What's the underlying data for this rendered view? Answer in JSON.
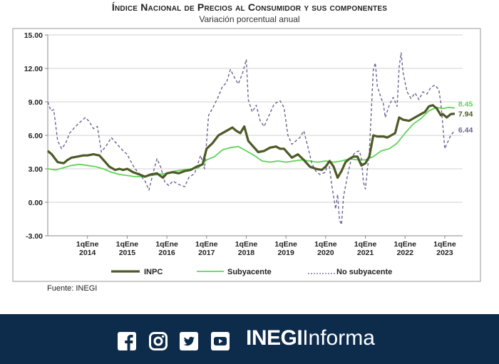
{
  "header": {
    "title": "Índice Nacional de Precios al Consumidor y sus componentes",
    "subtitle": "Variación porcentual anual"
  },
  "source": "Fuente: INEGI",
  "footer": {
    "brand_bold": "INEGI",
    "brand_light": "Informa",
    "icons": [
      "facebook-icon",
      "instagram-icon",
      "twitter-icon",
      "youtube-icon"
    ]
  },
  "chart_data": {
    "type": "line",
    "title": "Índice Nacional de Precios al Consumidor y sus componentes",
    "subtitle": "Variación porcentual anual",
    "ylim": [
      -3,
      15
    ],
    "yticks": [
      "-3.00",
      "0.00",
      "3.00",
      "6.00",
      "9.00",
      "12.00",
      "15.00"
    ],
    "xlim": [
      2013,
      2023.45
    ],
    "xticks": [
      {
        "x": 2014,
        "line1": "1qEne",
        "line2": "2014"
      },
      {
        "x": 2015,
        "line1": "1qEne",
        "line2": "2015"
      },
      {
        "x": 2016,
        "line1": "1qEne",
        "line2": "2016"
      },
      {
        "x": 2017,
        "line1": "1qEne",
        "line2": "2017"
      },
      {
        "x": 2018,
        "line1": "1qEne",
        "line2": "2018"
      },
      {
        "x": 2019,
        "line1": "1qEne",
        "line2": "2019"
      },
      {
        "x": 2020,
        "line1": "1qEne",
        "line2": "2020"
      },
      {
        "x": 2021,
        "line1": "1qEne",
        "line2": "2021"
      },
      {
        "x": 2022,
        "line1": "1qEne",
        "line2": "2022"
      },
      {
        "x": 2023,
        "line1": "1qEne",
        "line2": "2023"
      }
    ],
    "grid": true,
    "legend": "bottom",
    "series": [
      {
        "name": "INPC",
        "color": "#4d5a26",
        "style": "solid",
        "end_label": "7.94",
        "points": [
          [
            2013,
            4.6
          ],
          [
            2013.1,
            4.3
          ],
          [
            2013.25,
            3.6
          ],
          [
            2013.4,
            3.5
          ],
          [
            2013.5,
            3.8
          ],
          [
            2013.6,
            4.0
          ],
          [
            2013.75,
            4.1
          ],
          [
            2013.9,
            4.2
          ],
          [
            2014,
            4.2
          ],
          [
            2014.15,
            4.3
          ],
          [
            2014.3,
            4.2
          ],
          [
            2014.45,
            3.6
          ],
          [
            2014.55,
            3.2
          ],
          [
            2014.7,
            2.9
          ],
          [
            2014.8,
            3.0
          ],
          [
            2014.9,
            2.9
          ],
          [
            2015,
            3.0
          ],
          [
            2015.15,
            2.7
          ],
          [
            2015.3,
            2.5
          ],
          [
            2015.45,
            2.3
          ],
          [
            2015.6,
            2.5
          ],
          [
            2015.75,
            2.6
          ],
          [
            2015.9,
            2.2
          ],
          [
            2016,
            2.6
          ],
          [
            2016.15,
            2.7
          ],
          [
            2016.3,
            2.6
          ],
          [
            2016.45,
            2.8
          ],
          [
            2016.6,
            2.9
          ],
          [
            2016.75,
            3.2
          ],
          [
            2016.9,
            3.4
          ],
          [
            2017,
            4.8
          ],
          [
            2017.15,
            5.3
          ],
          [
            2017.3,
            6.0
          ],
          [
            2017.45,
            6.3
          ],
          [
            2017.55,
            6.5
          ],
          [
            2017.65,
            6.7
          ],
          [
            2017.75,
            6.4
          ],
          [
            2017.85,
            6.2
          ],
          [
            2017.95,
            6.8
          ],
          [
            2018.05,
            5.5
          ],
          [
            2018.15,
            5.1
          ],
          [
            2018.3,
            4.5
          ],
          [
            2018.45,
            4.6
          ],
          [
            2018.6,
            4.9
          ],
          [
            2018.75,
            5.0
          ],
          [
            2018.85,
            4.8
          ],
          [
            2018.95,
            4.8
          ],
          [
            2019.05,
            4.4
          ],
          [
            2019.15,
            4.0
          ],
          [
            2019.3,
            4.3
          ],
          [
            2019.45,
            3.8
          ],
          [
            2019.6,
            3.2
          ],
          [
            2019.75,
            3.0
          ],
          [
            2019.9,
            2.9
          ],
          [
            2020,
            3.2
          ],
          [
            2020.1,
            3.7
          ],
          [
            2020.2,
            3.2
          ],
          [
            2020.3,
            2.2
          ],
          [
            2020.4,
            2.8
          ],
          [
            2020.5,
            3.6
          ],
          [
            2020.6,
            3.9
          ],
          [
            2020.7,
            4.1
          ],
          [
            2020.8,
            4.1
          ],
          [
            2020.9,
            3.3
          ],
          [
            2021,
            3.5
          ],
          [
            2021.1,
            4.1
          ],
          [
            2021.2,
            6.0
          ],
          [
            2021.3,
            5.9
          ],
          [
            2021.45,
            5.9
          ],
          [
            2021.55,
            5.8
          ],
          [
            2021.65,
            6.0
          ],
          [
            2021.75,
            6.2
          ],
          [
            2021.85,
            7.6
          ],
          [
            2021.95,
            7.4
          ],
          [
            2022.1,
            7.3
          ],
          [
            2022.25,
            7.6
          ],
          [
            2022.4,
            7.9
          ],
          [
            2022.5,
            8.1
          ],
          [
            2022.6,
            8.6
          ],
          [
            2022.7,
            8.7
          ],
          [
            2022.8,
            8.4
          ],
          [
            2022.9,
            7.8
          ],
          [
            2022.95,
            7.9
          ],
          [
            2023.05,
            7.6
          ],
          [
            2023.15,
            7.9
          ],
          [
            2023.25,
            7.94
          ]
        ]
      },
      {
        "name": "Subyacente",
        "color": "#5fd35a",
        "style": "solid",
        "end_label": "8.45",
        "points": [
          [
            2013,
            3.0
          ],
          [
            2013.2,
            2.9
          ],
          [
            2013.4,
            3.1
          ],
          [
            2013.6,
            3.3
          ],
          [
            2013.8,
            3.4
          ],
          [
            2014,
            3.3
          ],
          [
            2014.2,
            3.2
          ],
          [
            2014.4,
            3.0
          ],
          [
            2014.6,
            2.7
          ],
          [
            2014.8,
            2.5
          ],
          [
            2015,
            2.4
          ],
          [
            2015.2,
            2.3
          ],
          [
            2015.4,
            2.3
          ],
          [
            2015.6,
            2.4
          ],
          [
            2015.8,
            2.5
          ],
          [
            2016,
            2.6
          ],
          [
            2016.2,
            2.8
          ],
          [
            2016.4,
            2.9
          ],
          [
            2016.6,
            3.0
          ],
          [
            2016.8,
            3.1
          ],
          [
            2017,
            3.8
          ],
          [
            2017.2,
            4.1
          ],
          [
            2017.4,
            4.7
          ],
          [
            2017.6,
            4.9
          ],
          [
            2017.8,
            5.0
          ],
          [
            2018,
            4.6
          ],
          [
            2018.2,
            4.2
          ],
          [
            2018.4,
            3.7
          ],
          [
            2018.6,
            3.6
          ],
          [
            2018.8,
            3.7
          ],
          [
            2019,
            3.6
          ],
          [
            2019.2,
            3.7
          ],
          [
            2019.4,
            3.8
          ],
          [
            2019.6,
            3.7
          ],
          [
            2019.8,
            3.6
          ],
          [
            2020,
            3.7
          ],
          [
            2020.2,
            3.6
          ],
          [
            2020.4,
            3.7
          ],
          [
            2020.6,
            3.9
          ],
          [
            2020.8,
            3.8
          ],
          [
            2021,
            3.8
          ],
          [
            2021.2,
            4.1
          ],
          [
            2021.4,
            4.6
          ],
          [
            2021.6,
            4.8
          ],
          [
            2021.8,
            5.3
          ],
          [
            2022,
            6.2
          ],
          [
            2022.2,
            7.0
          ],
          [
            2022.4,
            7.5
          ],
          [
            2022.6,
            8.2
          ],
          [
            2022.8,
            8.5
          ],
          [
            2022.95,
            8.4
          ],
          [
            2023.1,
            8.5
          ],
          [
            2023.25,
            8.45
          ]
        ]
      },
      {
        "name": "No subyacente",
        "color": "#6b6391",
        "style": "dashed",
        "end_label": "6.44",
        "points": [
          [
            2013,
            9.0
          ],
          [
            2013.08,
            8.2
          ],
          [
            2013.15,
            8.3
          ],
          [
            2013.25,
            5.5
          ],
          [
            2013.35,
            4.8
          ],
          [
            2013.45,
            5.3
          ],
          [
            2013.55,
            6.2
          ],
          [
            2013.7,
            6.8
          ],
          [
            2013.85,
            7.3
          ],
          [
            2013.95,
            7.6
          ],
          [
            2014.05,
            7.2
          ],
          [
            2014.15,
            6.6
          ],
          [
            2014.25,
            6.8
          ],
          [
            2014.35,
            4.5
          ],
          [
            2014.5,
            5.2
          ],
          [
            2014.6,
            5.8
          ],
          [
            2014.7,
            5.4
          ],
          [
            2014.8,
            5.0
          ],
          [
            2014.9,
            4.6
          ],
          [
            2015,
            4.3
          ],
          [
            2015.1,
            3.6
          ],
          [
            2015.2,
            3.0
          ],
          [
            2015.3,
            2.6
          ],
          [
            2015.45,
            1.9
          ],
          [
            2015.55,
            1.1
          ],
          [
            2015.65,
            2.6
          ],
          [
            2015.75,
            3.9
          ],
          [
            2015.85,
            3.1
          ],
          [
            2015.95,
            1.8
          ],
          [
            2016.05,
            1.5
          ],
          [
            2016.15,
            1.9
          ],
          [
            2016.3,
            1.6
          ],
          [
            2016.45,
            1.4
          ],
          [
            2016.55,
            2.2
          ],
          [
            2016.7,
            2.6
          ],
          [
            2016.85,
            4.2
          ],
          [
            2016.95,
            3.0
          ],
          [
            2017.05,
            7.8
          ],
          [
            2017.15,
            8.4
          ],
          [
            2017.3,
            9.5
          ],
          [
            2017.4,
            10.4
          ],
          [
            2017.5,
            10.7
          ],
          [
            2017.6,
            11.9
          ],
          [
            2017.7,
            11.2
          ],
          [
            2017.8,
            10.6
          ],
          [
            2017.9,
            11.5
          ],
          [
            2018,
            12.8
          ],
          [
            2018.05,
            9.2
          ],
          [
            2018.15,
            8.1
          ],
          [
            2018.25,
            8.7
          ],
          [
            2018.35,
            7.3
          ],
          [
            2018.45,
            6.8
          ],
          [
            2018.55,
            7.6
          ],
          [
            2018.7,
            8.8
          ],
          [
            2018.85,
            9.1
          ],
          [
            2018.95,
            8.5
          ],
          [
            2019.05,
            6.0
          ],
          [
            2019.15,
            5.2
          ],
          [
            2019.25,
            5.5
          ],
          [
            2019.35,
            5.8
          ],
          [
            2019.45,
            6.4
          ],
          [
            2019.55,
            5.0
          ],
          [
            2019.65,
            3.5
          ],
          [
            2019.75,
            2.8
          ],
          [
            2019.85,
            2.5
          ],
          [
            2020,
            2.7
          ],
          [
            2020.05,
            3.7
          ],
          [
            2020.1,
            3.1
          ],
          [
            2020.15,
            1.6
          ],
          [
            2020.2,
            0.5
          ],
          [
            2020.25,
            -0.6
          ],
          [
            2020.3,
            0.7
          ],
          [
            2020.35,
            -1.6
          ],
          [
            2020.4,
            -2.0
          ],
          [
            2020.45,
            0.5
          ],
          [
            2020.55,
            2.4
          ],
          [
            2020.65,
            4.0
          ],
          [
            2020.75,
            4.5
          ],
          [
            2020.85,
            4.6
          ],
          [
            2020.9,
            3.9
          ],
          [
            2020.95,
            1.8
          ],
          [
            2021,
            1.2
          ],
          [
            2021.05,
            2.9
          ],
          [
            2021.1,
            4.5
          ],
          [
            2021.15,
            8.2
          ],
          [
            2021.2,
            11.9
          ],
          [
            2021.25,
            12.5
          ],
          [
            2021.3,
            10.4
          ],
          [
            2021.4,
            9.3
          ],
          [
            2021.45,
            8.9
          ],
          [
            2021.5,
            7.6
          ],
          [
            2021.6,
            8.7
          ],
          [
            2021.7,
            9.4
          ],
          [
            2021.8,
            8.6
          ],
          [
            2021.85,
            12.1
          ],
          [
            2021.9,
            13.4
          ],
          [
            2021.95,
            11.6
          ],
          [
            2022.05,
            9.9
          ],
          [
            2022.15,
            9.3
          ],
          [
            2022.25,
            9.8
          ],
          [
            2022.35,
            9.2
          ],
          [
            2022.45,
            9.9
          ],
          [
            2022.55,
            9.7
          ],
          [
            2022.65,
            10.3
          ],
          [
            2022.75,
            10.5
          ],
          [
            2022.85,
            10.1
          ],
          [
            2022.9,
            8.9
          ],
          [
            2022.95,
            6.9
          ],
          [
            2023.0,
            4.8
          ],
          [
            2023.05,
            5.2
          ],
          [
            2023.15,
            6.0
          ],
          [
            2023.25,
            6.44
          ]
        ]
      }
    ]
  }
}
